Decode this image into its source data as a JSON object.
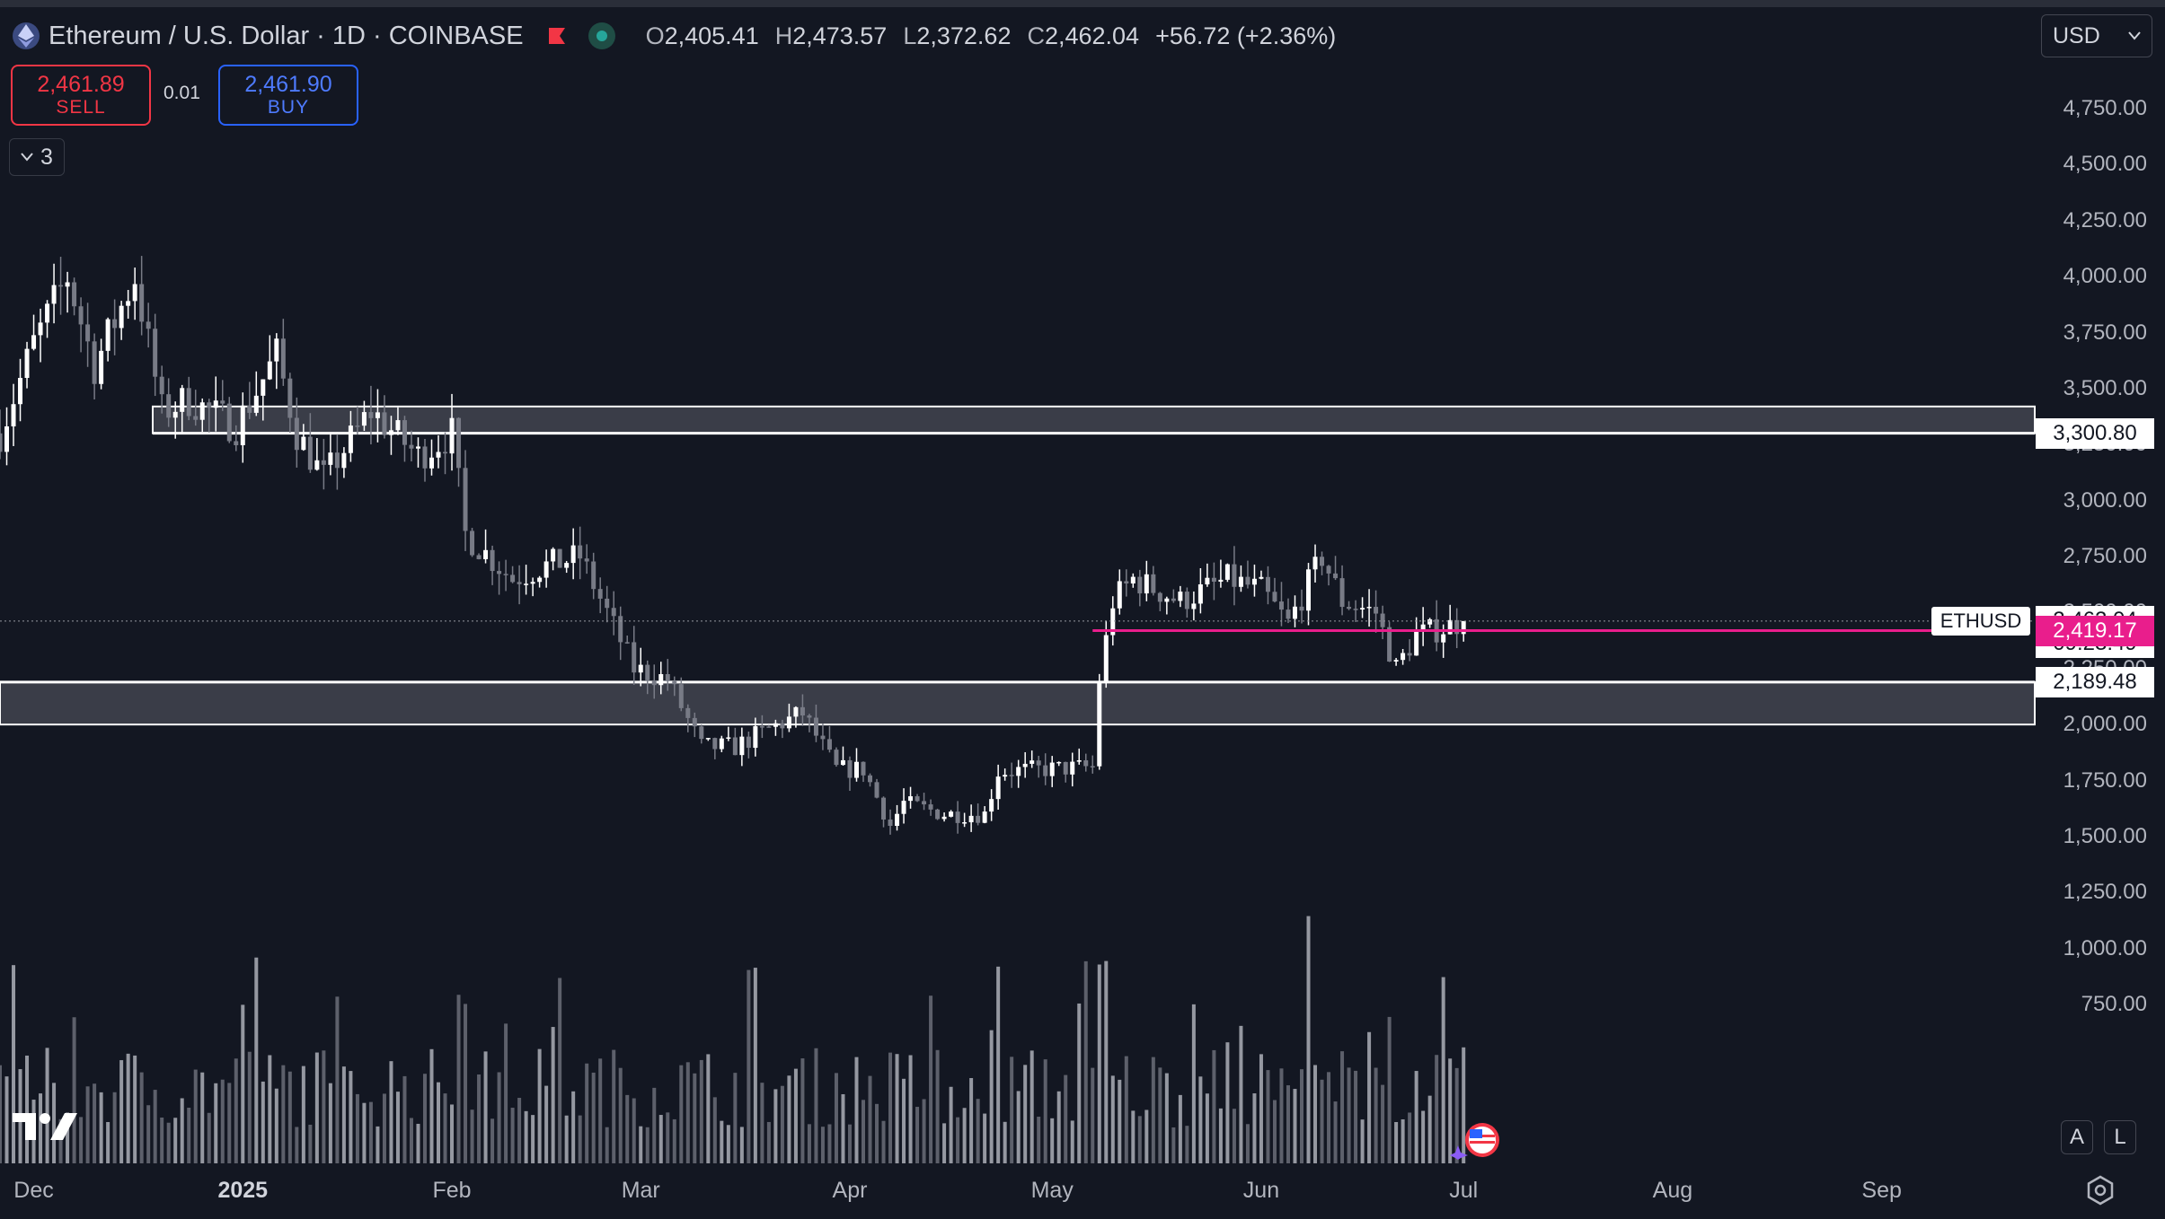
{
  "header": {
    "title": "Ethereum / U.S. Dollar · 1D · COINBASE",
    "ohlc": {
      "o_label": "O",
      "open": "2,405.41",
      "h_label": "H",
      "high": "2,473.57",
      "l_label": "L",
      "low": "2,372.62",
      "c_label": "C",
      "close": "2,462.04",
      "change": "+56.72 (+2.36%)"
    }
  },
  "trade": {
    "sell_price": "2,461.89",
    "sell_label": "SELL",
    "spread": "0.01",
    "buy_price": "2,461.90",
    "buy_label": "BUY"
  },
  "indicators": {
    "count": "3"
  },
  "currency": {
    "value": "USD"
  },
  "controls": {
    "auto": "A",
    "log": "L"
  },
  "chart_data": {
    "type": "candlestick",
    "title": "Ethereum / U.S. Dollar · 1D · COINBASE",
    "ylim": [
      500,
      5000
    ],
    "y_ticks": [
      750,
      1000,
      1250,
      1500,
      1750,
      2000,
      2250,
      2500,
      2750,
      3000,
      3250,
      3500,
      3750,
      4000,
      4250,
      4500,
      4750
    ],
    "y_tick_labels": [
      "750.00",
      "1,000.00",
      "1,250.00",
      "1,500.00",
      "1,750.00",
      "2,000.00",
      "2,250.00",
      "2,500.00",
      "2,750.00",
      "3,000.00",
      "3,250.00",
      "3,500.00",
      "3,750.00",
      "4,000.00",
      "4,250.00",
      "4,500.00",
      "4,750.00"
    ],
    "x_ticks": [
      {
        "label": "Dec",
        "date": "2024-12-01",
        "bold": false
      },
      {
        "label": "2025",
        "date": "2025-01-01",
        "bold": true
      },
      {
        "label": "Feb",
        "date": "2025-02-01",
        "bold": false
      },
      {
        "label": "Mar",
        "date": "2025-03-01",
        "bold": false
      },
      {
        "label": "Apr",
        "date": "2025-04-01",
        "bold": false
      },
      {
        "label": "May",
        "date": "2025-05-01",
        "bold": false
      },
      {
        "label": "Jun",
        "date": "2025-06-01",
        "bold": false
      },
      {
        "label": "Jul",
        "date": "2025-07-01",
        "bold": false
      },
      {
        "label": "Aug",
        "date": "2025-08-01",
        "bold": false
      },
      {
        "label": "Sep",
        "date": "2025-09-01",
        "bold": false
      }
    ],
    "x_range": [
      "2024-11-26",
      "2025-10-13"
    ],
    "close_series": [
      {
        "date": "2024-11-26",
        "close": 3300
      },
      {
        "date": "2024-12-01",
        "close": 3700
      },
      {
        "date": "2024-12-06",
        "close": 4000
      },
      {
        "date": "2024-12-10",
        "close": 3600
      },
      {
        "date": "2024-12-16",
        "close": 4000
      },
      {
        "date": "2024-12-20",
        "close": 3400
      },
      {
        "date": "2024-12-24",
        "close": 3450
      },
      {
        "date": "2024-12-31",
        "close": 3330
      },
      {
        "date": "2025-01-06",
        "close": 3650
      },
      {
        "date": "2025-01-09",
        "close": 3300
      },
      {
        "date": "2025-01-13",
        "close": 3100
      },
      {
        "date": "2025-01-20",
        "close": 3400
      },
      {
        "date": "2025-01-27",
        "close": 3200
      },
      {
        "date": "2025-02-01",
        "close": 3300
      },
      {
        "date": "2025-02-03",
        "close": 2850
      },
      {
        "date": "2025-02-10",
        "close": 2650
      },
      {
        "date": "2025-02-14",
        "close": 2700
      },
      {
        "date": "2025-02-20",
        "close": 2750
      },
      {
        "date": "2025-02-24",
        "close": 2500
      },
      {
        "date": "2025-02-28",
        "close": 2250
      },
      {
        "date": "2025-03-05",
        "close": 2200
      },
      {
        "date": "2025-03-10",
        "close": 1900
      },
      {
        "date": "2025-03-15",
        "close": 1900
      },
      {
        "date": "2025-03-20",
        "close": 1980
      },
      {
        "date": "2025-03-25",
        "close": 2050
      },
      {
        "date": "2025-03-30",
        "close": 1800
      },
      {
        "date": "2025-04-03",
        "close": 1800
      },
      {
        "date": "2025-04-07",
        "close": 1550
      },
      {
        "date": "2025-04-09",
        "close": 1650
      },
      {
        "date": "2025-04-15",
        "close": 1600
      },
      {
        "date": "2025-04-21",
        "close": 1600
      },
      {
        "date": "2025-04-23",
        "close": 1790
      },
      {
        "date": "2025-04-30",
        "close": 1800
      },
      {
        "date": "2025-05-07",
        "close": 1810
      },
      {
        "date": "2025-05-08",
        "close": 2200
      },
      {
        "date": "2025-05-10",
        "close": 2550
      },
      {
        "date": "2025-05-13",
        "close": 2650
      },
      {
        "date": "2025-05-20",
        "close": 2550
      },
      {
        "date": "2025-05-27",
        "close": 2650
      },
      {
        "date": "2025-06-01",
        "close": 2600
      },
      {
        "date": "2025-06-05",
        "close": 2450
      },
      {
        "date": "2025-06-10",
        "close": 2750
      },
      {
        "date": "2025-06-13",
        "close": 2550
      },
      {
        "date": "2025-06-18",
        "close": 2500
      },
      {
        "date": "2025-06-21",
        "close": 2250
      },
      {
        "date": "2025-06-24",
        "close": 2400
      },
      {
        "date": "2025-06-28",
        "close": 2430
      },
      {
        "date": "2025-07-01",
        "close": 2462
      }
    ],
    "levels": {
      "upper_zone": [
        3300.8,
        3420
      ],
      "lower_zone": [
        2000,
        2189.48
      ],
      "pink_line": 2419.17,
      "upper_label": "3,300.80",
      "lower_label": "2,189.48",
      "pink_label": "2,419.17"
    },
    "last": {
      "ticker": "ETHUSD",
      "price": 2462.04,
      "price_label": "2,462.04",
      "countdown": "09:23:49"
    },
    "colors": {
      "background": "#131722",
      "candle": "#ffffff",
      "candle_muted": "#787b86",
      "zone_fill": "#3a3d48",
      "pink_line": "#e91e8c",
      "sell": "#f23645",
      "buy": "#2962ff"
    }
  }
}
